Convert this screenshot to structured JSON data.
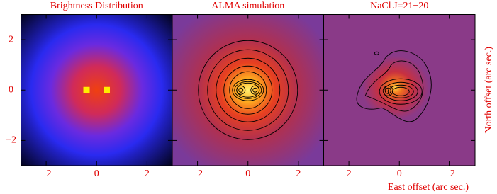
{
  "chart_data": [
    {
      "type": "image",
      "title": "Brightness Distribution",
      "xlim": [
        -3,
        3
      ],
      "ylim": [
        -3,
        3
      ],
      "xticks": [
        {
          "value": -2,
          "label": "−2"
        },
        0,
        2
      ],
      "yticks": [
        {
          "value": -2,
          "label": "−2"
        },
        0,
        2
      ],
      "x": [
        -0.4,
        0.4
      ],
      "y": [
        0,
        0
      ],
      "color": "#ffee00"
    },
    {
      "type": "image",
      "title": "ALMA simulation",
      "xlim": [
        -3,
        3
      ],
      "ylim": [
        -3,
        3
      ],
      "xticks": [
        {
          "value": -2,
          "label": "−2"
        },
        0,
        2
      ]
    },
    {
      "type": "image",
      "title": "NaCl J=21−20",
      "xlim": [
        3,
        -3
      ],
      "ylim": [
        -3,
        3
      ],
      "xticks": [
        2,
        0,
        {
          "value": -2,
          "label": "−2"
        }
      ],
      "x_label": "East offset (arc sec.)",
      "y_label": "North offset (arc sec.)"
    }
  ]
}
